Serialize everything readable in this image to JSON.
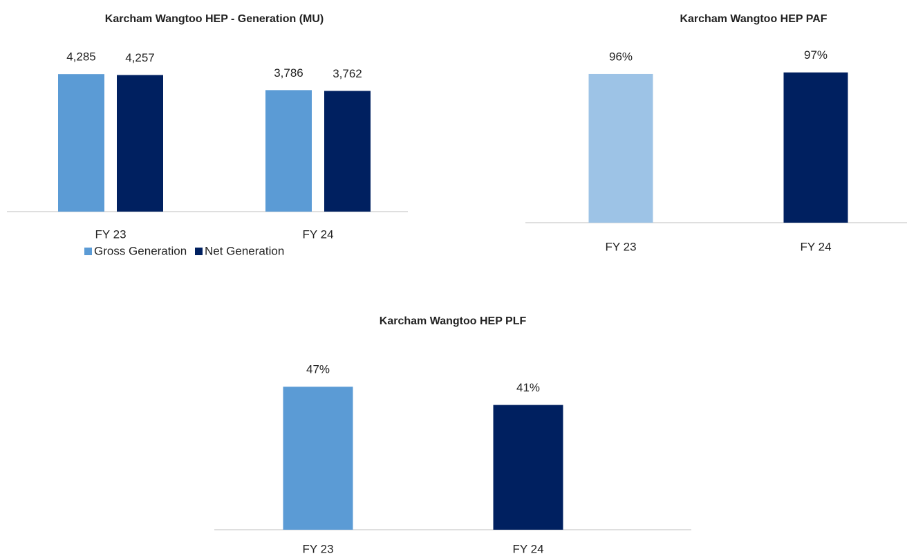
{
  "chart_data": [
    {
      "type": "bar",
      "title": "Karcham Wangtoo HEP - Generation (MU)",
      "categories": [
        "FY 23",
        "FY 24"
      ],
      "series": [
        {
          "name": "Gross Generation",
          "color": "#5b9bd5",
          "values": [
            4285,
            3786
          ],
          "value_labels": [
            "4,285",
            "3,786"
          ]
        },
        {
          "name": "Net Generation",
          "color": "#002060",
          "values": [
            4257,
            3762
          ],
          "value_labels": [
            "4,257",
            "3,762"
          ]
        }
      ],
      "ylim": [
        0,
        5000
      ],
      "legend": "bottom"
    },
    {
      "type": "bar",
      "title": "Karcham Wangtoo HEP PAF",
      "categories": [
        "FY 23",
        "FY 24"
      ],
      "values": [
        96,
        97
      ],
      "value_labels": [
        "96%",
        "97%"
      ],
      "colors": [
        "#9dc3e6",
        "#002060"
      ],
      "ylim": [
        0,
        100
      ]
    },
    {
      "type": "bar",
      "title": "Karcham Wangtoo HEP PLF",
      "categories": [
        "FY 23",
        "FY 24"
      ],
      "values": [
        47,
        41
      ],
      "value_labels": [
        "47%",
        "41%"
      ],
      "colors": [
        "#5b9bd5",
        "#002060"
      ],
      "ylim": [
        0,
        50
      ]
    }
  ]
}
